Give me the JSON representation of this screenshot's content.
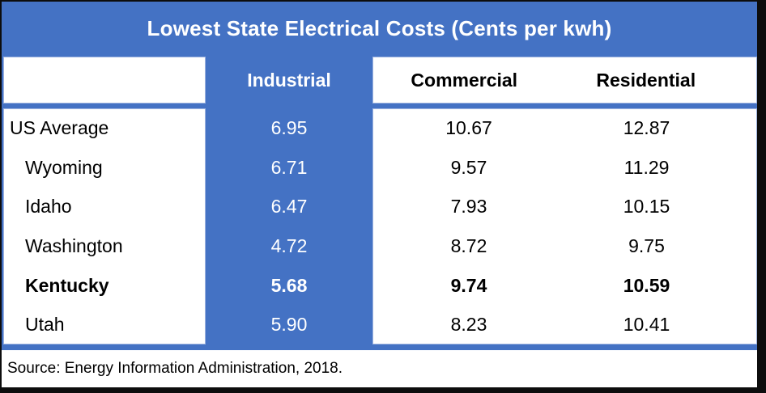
{
  "title": "Lowest State Electrical Costs (Cents per kwh)",
  "table": {
    "column_headers": [
      "Industrial",
      "Commercial",
      "Residential"
    ],
    "rows": [
      {
        "label": "US Average",
        "industrial": "6.95",
        "commercial": "10.67",
        "residential": "12.87",
        "indent": false,
        "bold": false
      },
      {
        "label": "Wyoming",
        "industrial": "6.71",
        "commercial": "9.57",
        "residential": "11.29",
        "indent": true,
        "bold": false
      },
      {
        "label": "Idaho",
        "industrial": "6.47",
        "commercial": "7.93",
        "residential": "10.15",
        "indent": true,
        "bold": false
      },
      {
        "label": "Washington",
        "industrial": "4.72",
        "commercial": "8.72",
        "residential": "9.75",
        "indent": true,
        "bold": false
      },
      {
        "label": "Kentucky",
        "industrial": "5.68",
        "commercial": "9.74",
        "residential": "10.59",
        "indent": true,
        "bold": true
      },
      {
        "label": "Utah",
        "industrial": "5.90",
        "commercial": "8.23",
        "residential": "10.41",
        "indent": true,
        "bold": false
      }
    ]
  },
  "source": "Source: Energy Information Administration, 2018.",
  "colors": {
    "accent_blue": "#4472C4",
    "cell_background": "#FFFFFF",
    "text_on_blue": "#FFFFFF",
    "table_text": "#000000",
    "frame_border": "#0D0D0D"
  },
  "chart_data": {
    "type": "table",
    "title": "Lowest State Electrical Costs (Cents per kwh)",
    "columns": [
      "",
      "Industrial",
      "Commercial",
      "Residential"
    ],
    "rows": [
      [
        "US Average",
        6.95,
        10.67,
        12.87
      ],
      [
        "Wyoming",
        6.71,
        9.57,
        11.29
      ],
      [
        "Idaho",
        6.47,
        7.93,
        10.15
      ],
      [
        "Washington",
        4.72,
        8.72,
        9.75
      ],
      [
        "Kentucky",
        5.68,
        9.74,
        10.59
      ],
      [
        "Utah",
        5.9,
        8.23,
        10.41
      ]
    ],
    "units": "cents per kWh",
    "highlighted_row": "Kentucky",
    "source": "Source: Energy Information Administration, 2018."
  }
}
